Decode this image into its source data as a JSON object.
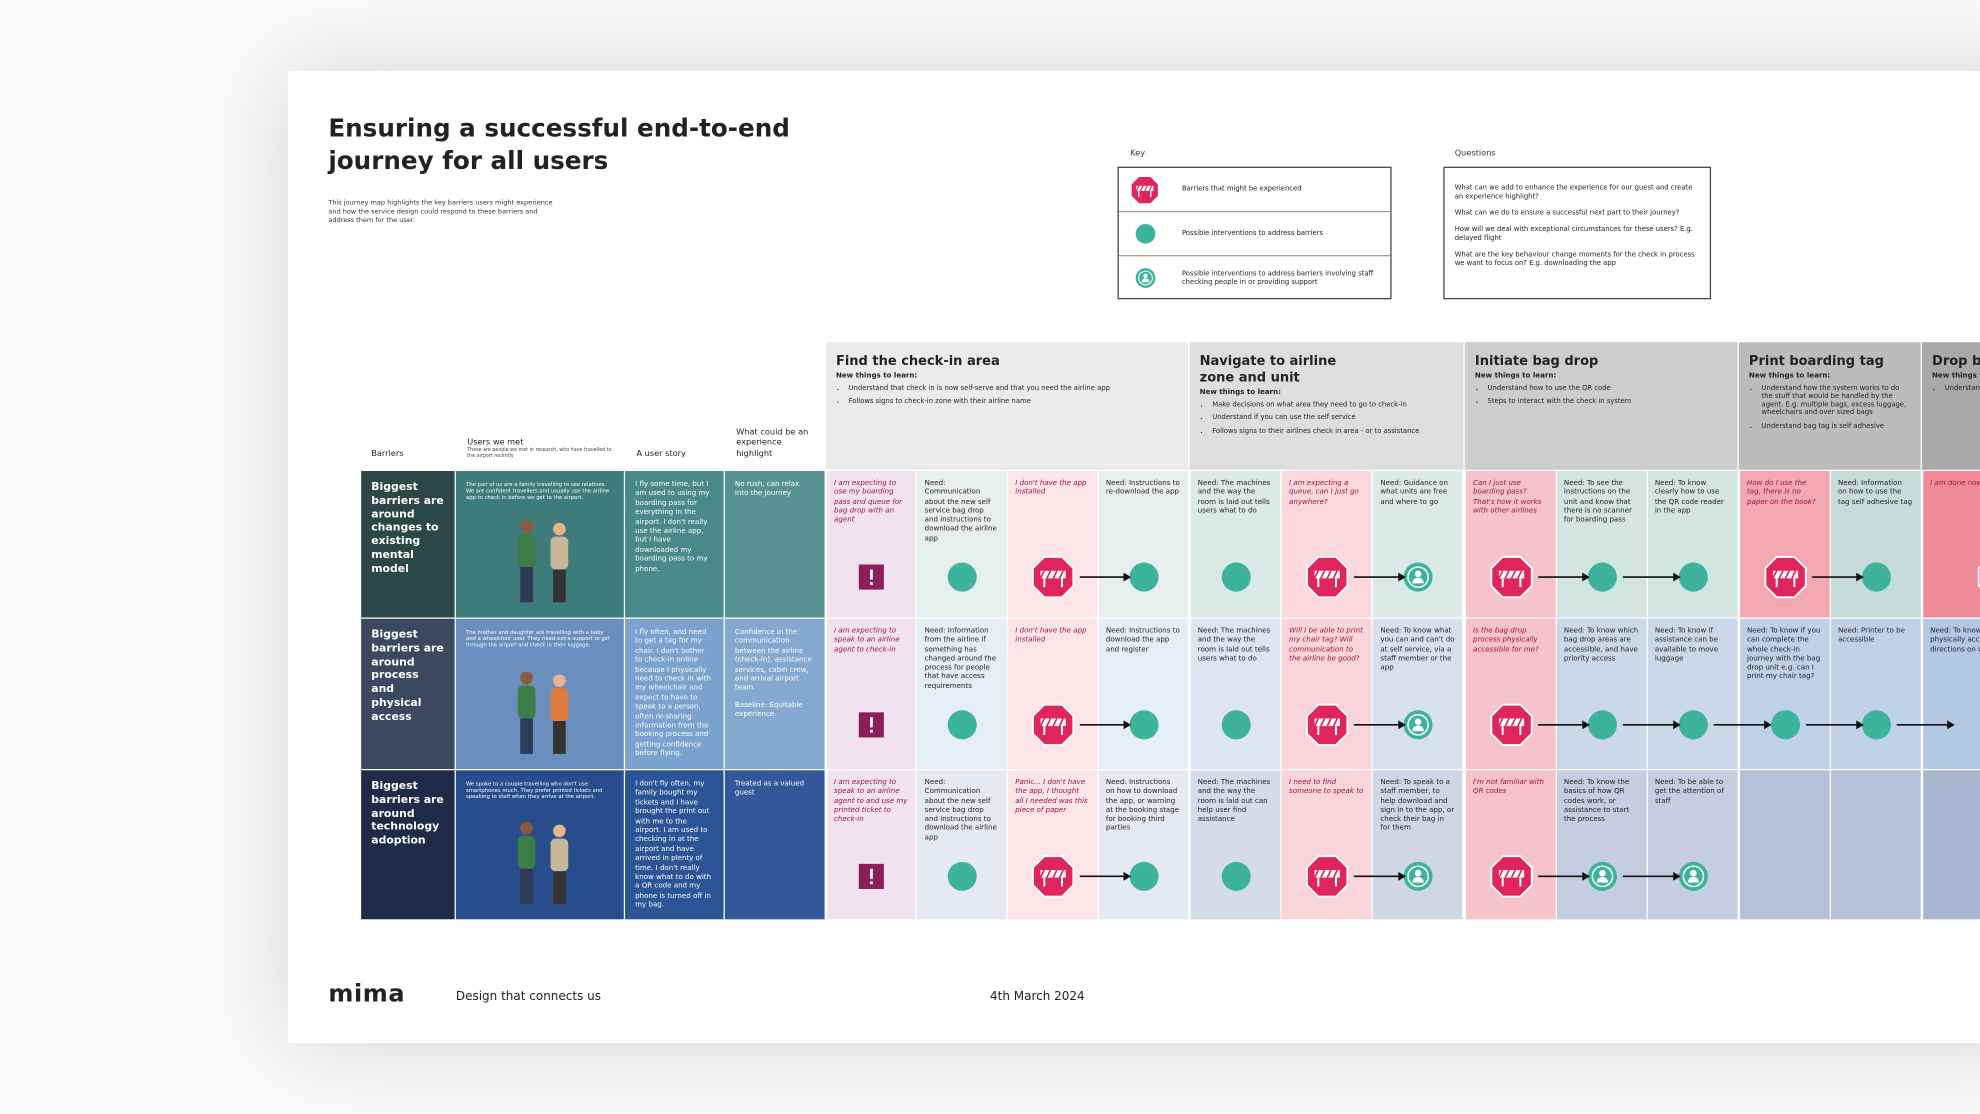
{
  "header": {
    "title": "Ensuring a successful end-to-end journey for all users",
    "description": "This journey map highlights the key barriers users might experience and how the service design could respond to these barriers and address them for the user."
  },
  "key": {
    "label": "Key",
    "items": [
      {
        "icon": "barrier",
        "text": "Barriers that might be experienced"
      },
      {
        "icon": "intervention",
        "text": "Possible interventions to address barriers"
      },
      {
        "icon": "staff",
        "text": "Possible interventions to address barriers involving staff checking people in or providing support"
      }
    ]
  },
  "questions": {
    "label": "Questions",
    "items": [
      "What can we add to enhance the experience for our guest and create an experience highlight?",
      "What can we do to ensure a successful next part to their journey?",
      "How will we deal with exceptional circumstances for these users? E.g. delayed flight",
      "What are the key behaviour change moments for the check in process we want to focus on? E.g. downloading the app"
    ]
  },
  "columns": {
    "barriers": "Barriers",
    "users": "Users we met",
    "users_note": "These are people we met in research, who have travelled to the airport recently",
    "story": "A user story",
    "highlight": "What could be an experience highlight"
  },
  "stages": [
    {
      "title": "Find the check-in area",
      "subtitle": "New things to learn:",
      "color": "#ebebeb",
      "items": [
        "Understand that check in is now self-serve and that you need the airline app",
        "Follows signs to check-in zone with their airline name"
      ]
    },
    {
      "title": "Navigate to airline zone and unit",
      "subtitle": "New things to learn:",
      "color": "#dedede",
      "items": [
        "Make decisions on what area they need to go to check-in",
        "Understand if you can use the self service",
        "Follows signs to their airlines check in area - or to assistance"
      ]
    },
    {
      "title": "Initiate bag drop",
      "subtitle": "New things to learn:",
      "color": "#cdcdcd",
      "items": [
        "Understand how to use the QR code",
        "Steps to interact with the check in system"
      ]
    },
    {
      "title": "Print boarding tag",
      "subtitle": "New things to learn:",
      "color": "#bcbcbc",
      "items": [
        "Understand how the system works to do the stuff that would be handled by the agent. E.g. multiple bags, excess luggage, wheelchairs and over sized bags",
        "Understand bag tag is self adhesive"
      ]
    },
    {
      "title": "Drop bag",
      "subtitle": "New things to learn:",
      "color": "#a9a9a9",
      "items": [
        "Understand what is still to do"
      ]
    }
  ],
  "rows": [
    {
      "barrier": "Biggest barriers are around changes to existing mental model",
      "users": "The pair of us are a family travelling to see relatives. We are confident travellers and usually use the airline app to check in before we get to the airport.",
      "story": "I fly some time, but I am used to using my boarding pass for everything in the airport. I don't really use the airline app, but I have downloaded my boarding pass to my phone.",
      "highlight": [
        "No rush, can relax into the journey"
      ],
      "colors": {
        "barrier": "#2c4747",
        "users": "#3e7c7c",
        "story": "#4a8989",
        "highlight": "#579393"
      },
      "stages": [
        [
          {
            "text": "I am expecting to use my boarding pass and queue for bag drop with an agent",
            "icon": "flag",
            "color": "#f1e3ee"
          },
          {
            "text": "Need: Communication about the new self service bag drop and instructions to download the airline app",
            "icon": "intervention",
            "color": "#e6efee"
          },
          {
            "text": "I don't have the app installed",
            "icon": "barrier",
            "arrow": true,
            "color": "#fbe5e8"
          },
          {
            "text": "Need: Instructions to re-download the app",
            "icon": "intervention",
            "color": "#e6efee"
          }
        ],
        [
          {
            "text": "Need: The machines and the way the room is laid out tells users what to do",
            "icon": "intervention",
            "color": "#dceae7"
          },
          {
            "text": "I am expecting a queue, can I just go anywhere?",
            "icon": "barrier",
            "arrow": true,
            "color": "#fad8dc"
          },
          {
            "text": "Need: Guidance on what units are free and where to go",
            "icon": "staff",
            "color": "#dceae7"
          }
        ],
        [
          {
            "text": "Can I just use boarding pass? That's how it works with other airlines",
            "icon": "barrier",
            "arrow": true,
            "color": "#f5c3c9"
          },
          {
            "text": "Need: To see the instructions on the unit and know that there is no scanner for boarding pass",
            "icon": "intervention",
            "arrow": true,
            "color": "#d2e5e1"
          },
          {
            "text": "Need: To know clearly how to use the QR code reader in the app",
            "icon": "intervention",
            "color": "#d2e5e1"
          }
        ],
        [
          {
            "text": "How do I use the tag, there is no paper on the book?",
            "icon": "barrier",
            "arrow": true,
            "color": "#f2a8b1"
          },
          {
            "text": "Need: Information on how to use the tag self adhesive tag",
            "icon": "intervention",
            "color": "#c5dcd9"
          }
        ],
        [
          {
            "text": "I am done now, right, where next?",
            "icon": "barrier",
            "color": "#ef8b97"
          }
        ]
      ]
    },
    {
      "barrier": "Biggest barriers are around process and physical access",
      "users": "The mother and daughter are travelling with a baby and a wheelchair user. They need extra support to get through the airport and check in their luggage.",
      "story": "I fly often, and need to get a tag for my chair. I don't bother to check-in online because I physically need to check in with my wheelchair and expect to have to speak to a person, often re-sharing information from the booking process and getting confidence before flying.",
      "highlight": [
        "Confidence in the communication between the airline (check-in), assistance services, cabin crew, and arrival airport team.",
        "Baseline: Equitable experience"
      ],
      "colors": {
        "barrier": "#3a495d",
        "users": "#6a8ebe",
        "story": "#79a2ce",
        "highlight": "#85a8d1"
      },
      "stages": [
        [
          {
            "text": "I am expecting to speak to an airline agent to check-in",
            "icon": "flag",
            "color": "#f1e3ee"
          },
          {
            "text": "Need: Information from the airline if something has changed around the process for people that have access requirements",
            "icon": "intervention",
            "color": "#e5edf7"
          },
          {
            "text": "I don't have the app installed",
            "icon": "barrier",
            "arrow": true,
            "color": "#fbe5e8"
          },
          {
            "text": "Need: Instructions to download the app and register",
            "icon": "intervention",
            "color": "#e5edf7"
          }
        ],
        [
          {
            "text": "Need: The machines and the way the room is laid out tells users what to do",
            "icon": "intervention",
            "color": "#dce5f1"
          },
          {
            "text": "Will I be able to print my chair tag? Will communication to the airline be good?",
            "icon": "barrier",
            "arrow": true,
            "color": "#f9d5d9"
          },
          {
            "text": "Need: To know what you can and can't do at self service, via a staff member or the app",
            "icon": "staff",
            "color": "#d7e1ee"
          }
        ],
        [
          {
            "text": "Is the bag drop process physically accessible for me?",
            "icon": "barrier",
            "arrow": true,
            "color": "#f5c3c9"
          },
          {
            "text": "Need: To know which bag drop areas are accessible, and have priority access",
            "icon": "intervention",
            "arrow": true,
            "color": "#cbd8e8"
          },
          {
            "text": "Need: To know if assistance can be available to move luggage",
            "icon": "intervention",
            "arrow": true,
            "color": "#cbd8e8"
          }
        ],
        [
          {
            "text": "Need: To know if you can complete the whole check-in journey with the bag drop unit e.g. can I print my chair tag?",
            "icon": "intervention",
            "arrow": true,
            "color": "#bfd1e6"
          },
          {
            "text": "Need: Printer to be accessible",
            "icon": "intervention",
            "arrow": true,
            "color": "#bfd1e6"
          }
        ],
        [
          {
            "text": "Need: To know bag drop process is physically accessible, if only some directions on where to go",
            "icon": "intervention",
            "color": "#b3c8e2"
          }
        ]
      ]
    },
    {
      "barrier": "Biggest barriers are around technology adoption",
      "users": "We spoke to a couple travelling who don't use smartphones much. They prefer printed tickets and speaking to staff when they arrive at the airport.",
      "story": "I don't fly often, my family bought my tickets and I have brought the print out with me to the airport. I am used to checking in at the airport and have arrived in plenty of time. I don't really know what to do with a QR code and my phone is turned off in my bag.",
      "highlight": [
        "Treated as a valued guest"
      ],
      "colors": {
        "barrier": "#1e2c48",
        "users": "#284d8c",
        "story": "#2c5597",
        "highlight": "#33589a"
      },
      "stages": [
        [
          {
            "text": "I am expecting to speak to an airline agent to and use my printed ticket to check-in",
            "icon": "flag",
            "color": "#f1e3ee"
          },
          {
            "text": "Need: Communication about the new self service bag drop and instructions to download the airline app",
            "icon": "intervention",
            "color": "#e5e9f2"
          },
          {
            "text": "Panic... I don't have the app, I thought all I needed was this piece of paper",
            "icon": "barrier",
            "arrow": true,
            "color": "#fbe5e8"
          },
          {
            "text": "Need: Instructions on how to download the app, or warning at the booking stage for booking third parties",
            "icon": "intervention",
            "color": "#e5e9f2"
          }
        ],
        [
          {
            "text": "Need: The machines and the way the room is laid out can help user find assistance",
            "icon": "intervention",
            "color": "#d4dbe9"
          },
          {
            "text": "I need to find someone to speak to",
            "icon": "barrier",
            "arrow": true,
            "color": "#f9d5d9"
          },
          {
            "text": "Need: To speak to a staff member, to help download and sign in to the app, or check their bag in for them",
            "icon": "staff",
            "color": "#cfd7e5"
          }
        ],
        [
          {
            "text": "I'm not familiar with QR codes",
            "icon": "barrier",
            "arrow": true,
            "color": "#f5c3c9"
          },
          {
            "text": "Need: To know the basics of how QR codes work, or assistance to start the process",
            "icon": "staff",
            "arrow": true,
            "color": "#c4cee0"
          },
          {
            "text": "Need: To be able to get the attention of staff",
            "icon": "staff",
            "color": "#c4cee0"
          }
        ],
        [
          {
            "color": "#b4c0d8"
          },
          {
            "color": "#b4c0d8"
          }
        ],
        [
          {
            "color": "#a8b6d0"
          }
        ]
      ]
    }
  ],
  "footer": {
    "brand": "mima",
    "tagline": "Design that connects us",
    "date": "4th March 2024"
  }
}
